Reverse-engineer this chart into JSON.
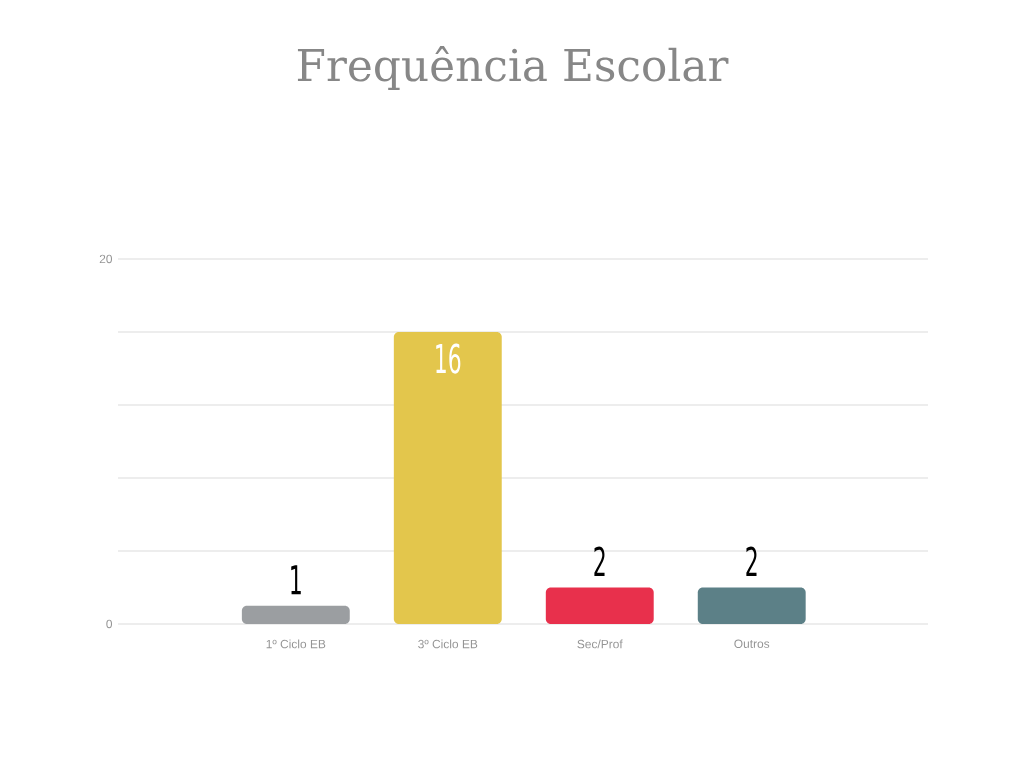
{
  "chart_data": {
    "type": "bar",
    "title": "Frequência Escolar",
    "categories": [
      "1º Ciclo EB",
      "3º Ciclo EB",
      "Sec/Prof",
      "Outros"
    ],
    "values": [
      1,
      16,
      2,
      2
    ],
    "colors": [
      "#9b9ea1",
      "#e3c64c",
      "#e8304c",
      "#5c8087"
    ],
    "ylim": [
      0,
      20
    ],
    "yticks": [
      0,
      {
        "value": 4,
        "label": null
      },
      {
        "value": 8,
        "label": null
      },
      {
        "value": 12,
        "label": null
      },
      {
        "value": 16,
        "label": null
      },
      20
    ],
    "grid": "y",
    "data_labels": true
  }
}
